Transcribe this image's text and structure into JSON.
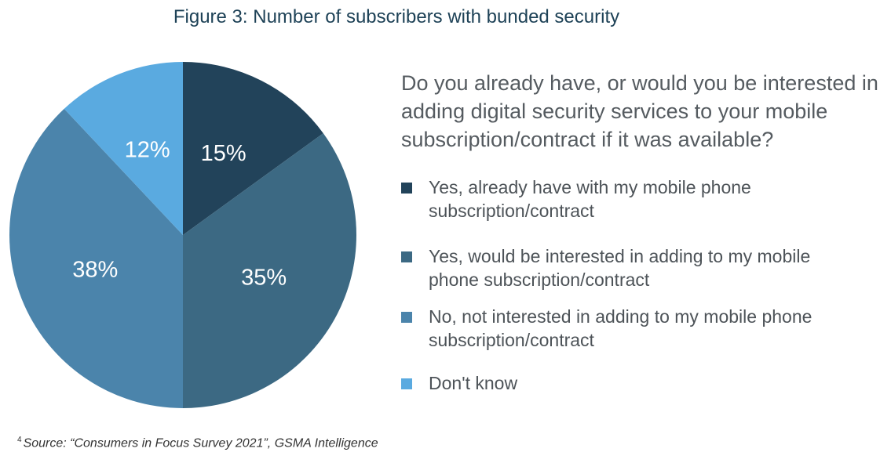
{
  "title": "Figure 3: Number of subscribers with bunded security",
  "question": "Do you already have, or would you be interested in adding digital security services to your mobile subscription/contract if it was available?",
  "source": {
    "marker": "4",
    "text": "Source: “Consumers in Focus Survey 2021”, GSMA Intelligence"
  },
  "chart_data": {
    "type": "pie",
    "title": "Figure 3: Number of subscribers with bunded security",
    "start": "12 o'clock, clockwise",
    "slices": [
      {
        "label": "Yes, already have with my mobile phone subscription/contract",
        "value": 15,
        "value_label": "15%",
        "color": "#22435a"
      },
      {
        "label": "Yes, would be interested in adding to my mobile phone subscription/contract",
        "value": 35,
        "value_label": "35%",
        "color": "#3c6983"
      },
      {
        "label": "No, not interested in adding to my mobile phone subscription/contract",
        "value": 38,
        "value_label": "38%",
        "color": "#4b84ab"
      },
      {
        "label": "Don't know",
        "value": 12,
        "value_label": "12%",
        "color": "#5aaae0"
      }
    ],
    "legend_position": "right"
  }
}
